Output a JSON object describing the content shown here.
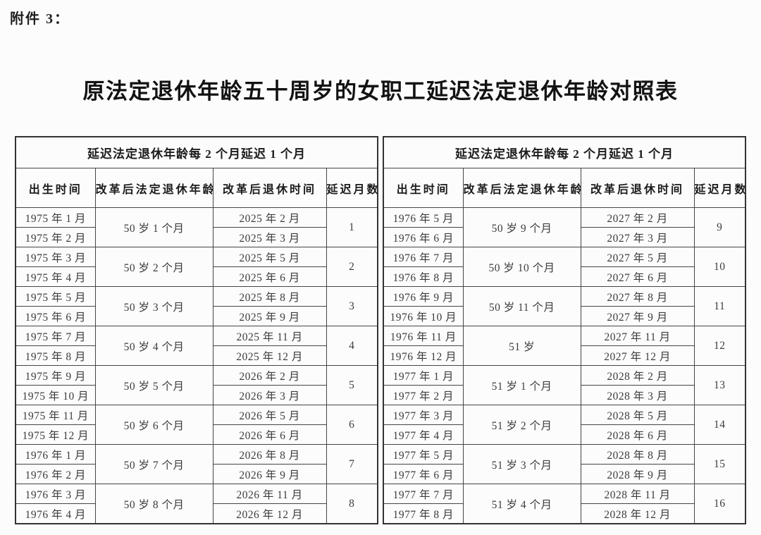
{
  "page": {
    "attachment_label": "附件 3：",
    "title": "原法定退休年龄五十周岁的女职工延迟法定退休年龄对照表"
  },
  "table": {
    "group_header": "延迟法定退休年龄每 2 个月延迟 1 个月",
    "columns": [
      "出生时间",
      "改革后法定退休年龄",
      "改革后退休时间",
      "延迟月数"
    ],
    "left_groups": [
      {
        "births": [
          "1975 年 1 月",
          "1975 年 2 月"
        ],
        "age": "50 岁 1 个月",
        "retires": [
          "2025 年 2 月",
          "2025 年 3 月"
        ],
        "delay": "1"
      },
      {
        "births": [
          "1975 年 3 月",
          "1975 年 4 月"
        ],
        "age": "50 岁 2 个月",
        "retires": [
          "2025 年 5 月",
          "2025 年 6 月"
        ],
        "delay": "2"
      },
      {
        "births": [
          "1975 年 5 月",
          "1975 年 6 月"
        ],
        "age": "50 岁 3 个月",
        "retires": [
          "2025 年 8 月",
          "2025 年 9 月"
        ],
        "delay": "3"
      },
      {
        "births": [
          "1975 年 7 月",
          "1975 年 8 月"
        ],
        "age": "50 岁 4 个月",
        "retires": [
          "2025 年 11 月",
          "2025 年 12 月"
        ],
        "delay": "4"
      },
      {
        "births": [
          "1975 年 9 月",
          "1975 年 10 月"
        ],
        "age": "50 岁 5 个月",
        "retires": [
          "2026 年 2 月",
          "2026 年 3 月"
        ],
        "delay": "5"
      },
      {
        "births": [
          "1975 年 11 月",
          "1975 年 12 月"
        ],
        "age": "50 岁 6 个月",
        "retires": [
          "2026 年 5 月",
          "2026 年 6 月"
        ],
        "delay": "6"
      },
      {
        "births": [
          "1976 年 1 月",
          "1976 年 2 月"
        ],
        "age": "50 岁 7 个月",
        "retires": [
          "2026 年 8 月",
          "2026 年 9 月"
        ],
        "delay": "7"
      },
      {
        "births": [
          "1976 年 3 月",
          "1976 年 4 月"
        ],
        "age": "50 岁 8 个月",
        "retires": [
          "2026 年 11 月",
          "2026 年 12 月"
        ],
        "delay": "8"
      }
    ],
    "right_groups": [
      {
        "births": [
          "1976 年 5 月",
          "1976 年 6 月"
        ],
        "age": "50 岁 9 个月",
        "retires": [
          "2027 年 2 月",
          "2027 年 3 月"
        ],
        "delay": "9"
      },
      {
        "births": [
          "1976 年 7 月",
          "1976 年 8 月"
        ],
        "age": "50 岁 10 个月",
        "retires": [
          "2027 年 5 月",
          "2027 年 6 月"
        ],
        "delay": "10"
      },
      {
        "births": [
          "1976 年 9 月",
          "1976 年 10 月"
        ],
        "age": "50 岁 11 个月",
        "retires": [
          "2027 年 8 月",
          "2027 年 9 月"
        ],
        "delay": "11"
      },
      {
        "births": [
          "1976 年 11 月",
          "1976 年 12 月"
        ],
        "age": "51 岁",
        "retires": [
          "2027 年 11 月",
          "2027 年 12 月"
        ],
        "delay": "12"
      },
      {
        "births": [
          "1977 年 1 月",
          "1977 年 2 月"
        ],
        "age": "51 岁 1 个月",
        "retires": [
          "2028 年 2 月",
          "2028 年 3 月"
        ],
        "delay": "13"
      },
      {
        "births": [
          "1977 年 3 月",
          "1977 年 4 月"
        ],
        "age": "51 岁 2 个月",
        "retires": [
          "2028 年 5 月",
          "2028 年 6 月"
        ],
        "delay": "14"
      },
      {
        "births": [
          "1977 年 5 月",
          "1977 年 6 月"
        ],
        "age": "51 岁 3 个月",
        "retires": [
          "2028 年 8 月",
          "2028 年 9 月"
        ],
        "delay": "15"
      },
      {
        "births": [
          "1977 年 7 月",
          "1977 年 8 月"
        ],
        "age": "51 岁 4 个月",
        "retires": [
          "2028 年 11 月",
          "2028 年 12 月"
        ],
        "delay": "16"
      }
    ]
  }
}
